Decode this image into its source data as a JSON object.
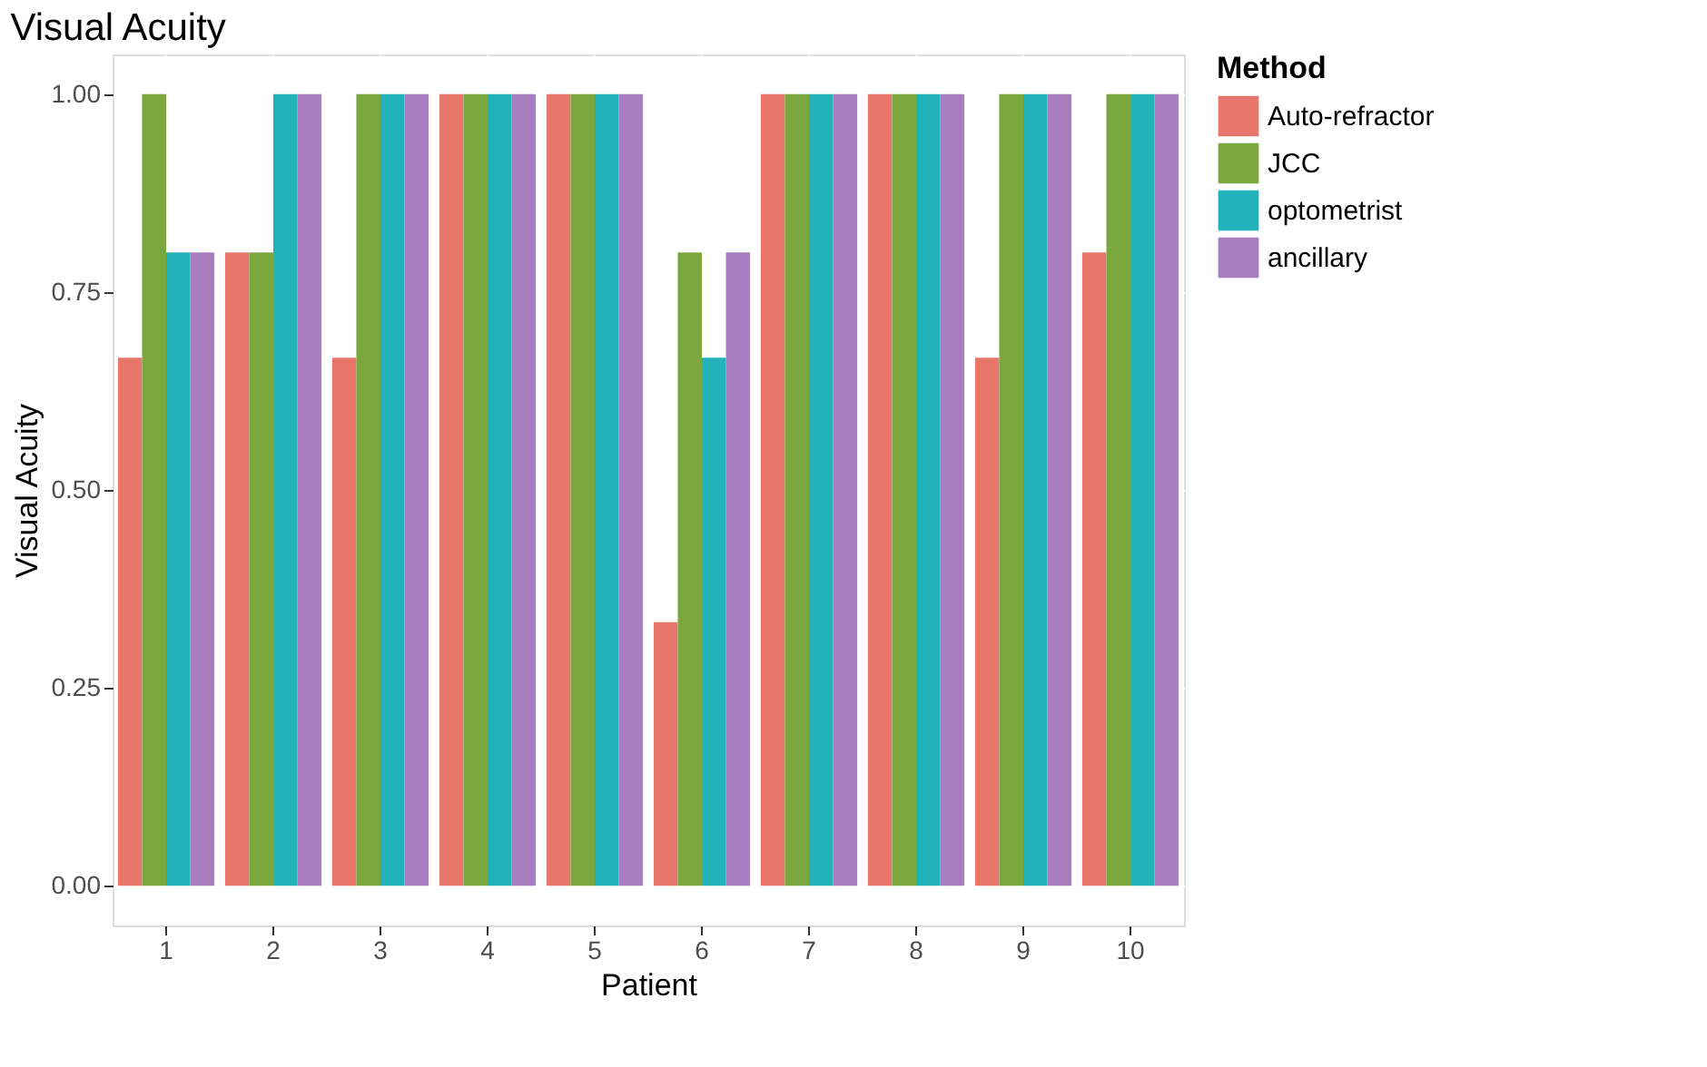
{
  "chart_data": {
    "type": "bar",
    "title": "Visual Acuity",
    "xlabel": "Patient",
    "ylabel": "Visual Acuity",
    "legend_title": "Method",
    "categories": [
      "1",
      "2",
      "3",
      "4",
      "5",
      "6",
      "7",
      "8",
      "9",
      "10"
    ],
    "series": [
      {
        "name": "Auto-refractor",
        "color": "#e8766b",
        "values": [
          0.667,
          0.8,
          0.667,
          1,
          1,
          0.333,
          1,
          1,
          0.667,
          0.8
        ]
      },
      {
        "name": "JCC",
        "color": "#7aa83e",
        "values": [
          1,
          0.8,
          1,
          1,
          1,
          0.8,
          1,
          1,
          1,
          1
        ]
      },
      {
        "name": "optometrist",
        "color": "#21b3b9",
        "values": [
          0.8,
          1,
          1,
          1,
          1,
          0.667,
          1,
          1,
          1,
          1
        ]
      },
      {
        "name": "ancillary",
        "color": "#a87ec0",
        "values": [
          0.8,
          1,
          1,
          1,
          1,
          0.8,
          1,
          1,
          1,
          1
        ]
      }
    ],
    "ylim": [
      -0.05,
      1.05
    ],
    "yticks": [
      {
        "value": 0,
        "label": "0.00"
      },
      {
        "value": 0.25,
        "label": "0.25"
      },
      {
        "value": 0.5,
        "label": "0.50"
      },
      {
        "value": 0.75,
        "label": "0.75"
      },
      {
        "value": 1,
        "label": "1.00"
      }
    ],
    "grid": true,
    "legend": "right"
  }
}
